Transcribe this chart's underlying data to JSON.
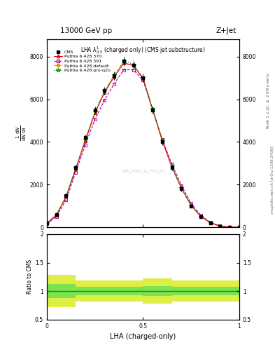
{
  "title_top": "13000 GeV pp",
  "title_right": "Z+Jet",
  "plot_title": "LHA $\\lambda^{1}_{0.5}$ (charged only) (CMS jet substructure)",
  "xlabel": "LHA (charged-only)",
  "ylabel_main": "$\\frac{1}{\\mathrm{d}N}\\frac{\\mathrm{d}N}{\\mathrm{d}\\lambda}$",
  "ylabel_ratio": "Ratio to CMS",
  "right_label": "Rivet 3.1.10, $\\geq$ 2.9M events",
  "right_label2": "mcplots.cern.ch [arXiv:1306.3436]",
  "cms_watermark": "CMS_2021_11_FTH_07",
  "lha_x": [
    0.0,
    0.05,
    0.1,
    0.15,
    0.2,
    0.25,
    0.3,
    0.35,
    0.4,
    0.45,
    0.5,
    0.55,
    0.6,
    0.65,
    0.7,
    0.75,
    0.8,
    0.85,
    0.9,
    0.95,
    1.0
  ],
  "cms_y": [
    200,
    600,
    1500,
    2800,
    4200,
    5500,
    6400,
    7100,
    7800,
    7600,
    7000,
    5500,
    4000,
    2800,
    1800,
    1000,
    500,
    200,
    50,
    10,
    0
  ],
  "p6_370_y": [
    180,
    580,
    1420,
    2720,
    4050,
    5350,
    6320,
    7050,
    7700,
    7580,
    6980,
    5520,
    4050,
    2820,
    1820,
    1020,
    510,
    210,
    55,
    12,
    0
  ],
  "p6_391_y": [
    160,
    500,
    1280,
    2560,
    3850,
    5050,
    5950,
    6720,
    7380,
    7380,
    6900,
    5520,
    4120,
    2960,
    1960,
    1120,
    560,
    235,
    65,
    16,
    0
  ],
  "p6_default_y": [
    180,
    580,
    1420,
    2720,
    4050,
    5350,
    6320,
    7050,
    7700,
    7580,
    6980,
    5520,
    4050,
    2820,
    1820,
    1020,
    510,
    210,
    55,
    12,
    0
  ],
  "p6_proq2o_y": [
    200,
    610,
    1460,
    2790,
    4120,
    5440,
    6400,
    7140,
    7780,
    7640,
    7020,
    5570,
    4080,
    2850,
    1840,
    1035,
    515,
    212,
    56,
    12,
    0
  ],
  "cms_err_y": [
    30,
    60,
    90,
    120,
    150,
    170,
    180,
    190,
    200,
    195,
    185,
    170,
    150,
    130,
    110,
    85,
    60,
    40,
    20,
    8,
    3
  ],
  "ratio_ylim": [
    0.5,
    2.0
  ],
  "main_ylim": [
    0,
    8800
  ],
  "main_yticks": [
    0,
    2000,
    4000,
    6000,
    8000
  ],
  "xlim": [
    0,
    1
  ],
  "xticks": [
    0.0,
    0.5,
    1.0
  ],
  "colors": {
    "cms": "#000000",
    "p6_370": "#dd0000",
    "p6_391": "#aa00aa",
    "p6_default": "#ff8800",
    "p6_proq2o": "#009900"
  },
  "ratio_band_inner_color": "#55dd55",
  "ratio_band_outer_color": "#ddee44",
  "background_color": "#ffffff",
  "ratio_outer_low": [
    0.72,
    0.72,
    0.72,
    0.82,
    0.82,
    0.82,
    0.82,
    0.82,
    0.82,
    0.82,
    0.78,
    0.78,
    0.78,
    0.82,
    0.82,
    0.82,
    0.82,
    0.82,
    0.82,
    0.82
  ],
  "ratio_outer_hi": [
    1.28,
    1.28,
    1.28,
    1.18,
    1.18,
    1.18,
    1.18,
    1.18,
    1.18,
    1.18,
    1.22,
    1.22,
    1.22,
    1.18,
    1.18,
    1.18,
    1.18,
    1.18,
    1.18,
    1.18
  ],
  "ratio_inner_low": [
    0.88,
    0.88,
    0.88,
    0.93,
    0.93,
    0.93,
    0.93,
    0.93,
    0.93,
    0.93,
    0.91,
    0.91,
    0.91,
    0.93,
    0.93,
    0.93,
    0.93,
    0.93,
    0.93,
    0.93
  ],
  "ratio_inner_hi": [
    1.12,
    1.12,
    1.12,
    1.07,
    1.07,
    1.07,
    1.07,
    1.07,
    1.07,
    1.07,
    1.09,
    1.09,
    1.09,
    1.07,
    1.07,
    1.07,
    1.07,
    1.07,
    1.07,
    1.07
  ]
}
